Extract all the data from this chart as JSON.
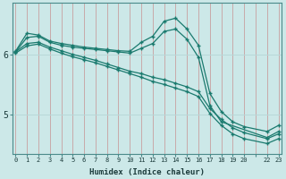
{
  "xlabel": "Humidex (Indice chaleur)",
  "background_color": "#cce8e8",
  "line_color": "#1a7a6e",
  "grid_color_h": "#b8d8d8",
  "grid_color_v": "#c8aaaa",
  "lines": [
    {
      "x": [
        0,
        1,
        2,
        3,
        4,
        5,
        6,
        7,
        8,
        9,
        10,
        11,
        12,
        13,
        14,
        15,
        16,
        17,
        18,
        19,
        20,
        22,
        23
      ],
      "y": [
        6.05,
        6.35,
        6.32,
        6.22,
        6.18,
        6.15,
        6.12,
        6.1,
        6.08,
        6.06,
        6.05,
        6.2,
        6.3,
        6.55,
        6.6,
        6.42,
        6.15,
        5.35,
        5.05,
        4.88,
        4.8,
        4.72,
        4.82
      ]
    },
    {
      "x": [
        0,
        1,
        2,
        3,
        4,
        5,
        6,
        7,
        8,
        9,
        10,
        11,
        12,
        13,
        14,
        15,
        16,
        17,
        18,
        22,
        23
      ],
      "y": [
        6.04,
        6.28,
        6.3,
        6.2,
        6.15,
        6.12,
        6.1,
        6.08,
        6.06,
        6.04,
        6.02,
        6.1,
        6.18,
        6.38,
        6.42,
        6.25,
        5.95,
        5.15,
        4.88,
        4.62,
        4.72
      ]
    },
    {
      "x": [
        0,
        1,
        2,
        3,
        4,
        5,
        6,
        7,
        8,
        9,
        10,
        11,
        12,
        13,
        14,
        15,
        16,
        17,
        18,
        19,
        20,
        22,
        23
      ],
      "y": [
        6.04,
        6.18,
        6.2,
        6.12,
        6.06,
        6.0,
        5.95,
        5.9,
        5.84,
        5.78,
        5.72,
        5.68,
        5.62,
        5.58,
        5.52,
        5.46,
        5.38,
        5.1,
        4.92,
        4.78,
        4.7,
        4.6,
        4.68
      ]
    },
    {
      "x": [
        0,
        1,
        2,
        3,
        4,
        5,
        6,
        7,
        8,
        9,
        10,
        11,
        12,
        13,
        14,
        15,
        16,
        17,
        18,
        19,
        20,
        22,
        23
      ],
      "y": [
        6.02,
        6.14,
        6.17,
        6.09,
        6.02,
        5.96,
        5.91,
        5.86,
        5.8,
        5.74,
        5.68,
        5.62,
        5.55,
        5.5,
        5.44,
        5.38,
        5.3,
        5.02,
        4.82,
        4.68,
        4.6,
        4.52,
        4.6
      ]
    }
  ],
  "yticks": [
    5,
    6
  ],
  "xtick_labels": [
    "0",
    "1",
    "2",
    "3",
    "4",
    "5",
    "6",
    "7",
    "8",
    "9",
    "10",
    "11",
    "12",
    "13",
    "14",
    "15",
    "16",
    "17",
    "18",
    "19",
    "20",
    "",
    "22",
    "23"
  ],
  "xtick_positions": [
    0,
    1,
    2,
    3,
    4,
    5,
    6,
    7,
    8,
    9,
    10,
    11,
    12,
    13,
    14,
    15,
    16,
    17,
    18,
    19,
    20,
    21,
    22,
    23
  ],
  "xlim": [
    -0.3,
    23.3
  ],
  "ylim": [
    4.35,
    6.85
  ]
}
